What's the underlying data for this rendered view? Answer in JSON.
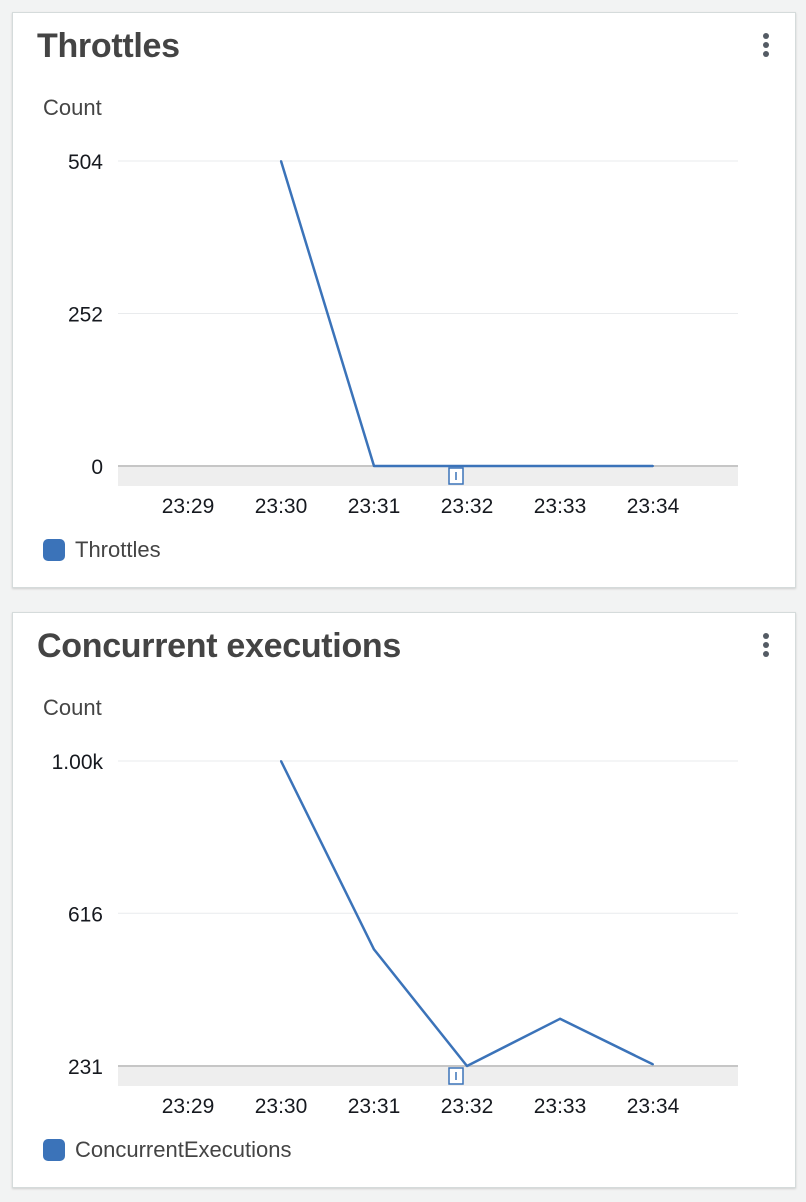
{
  "colors": {
    "series": "#3b73b9",
    "grid": "#e9ebed",
    "baseline": "#c6c6c6",
    "band": "#eeeeee"
  },
  "widgets": [
    {
      "title": "Throttles",
      "menu_icon": "more-vertical-icon",
      "chart_data": {
        "type": "line",
        "title": "Throttles",
        "ylabel": "Count",
        "xlabel": "",
        "x": [
          "23:29",
          "23:30",
          "23:31",
          "23:32",
          "23:33",
          "23:34"
        ],
        "y_ticks": [
          {
            "value": 504,
            "label": "504"
          },
          {
            "value": 252,
            "label": "252"
          },
          {
            "value": 0,
            "label": "0"
          }
        ],
        "ylim": [
          0,
          504
        ],
        "series": [
          {
            "name": "Throttles",
            "points": [
              {
                "x": "23:30",
                "y": 504
              },
              {
                "x": "23:31",
                "y": 0
              },
              {
                "x": "23:32",
                "y": 0
              },
              {
                "x": "23:33",
                "y": 0
              },
              {
                "x": "23:34",
                "y": 0
              }
            ]
          }
        ],
        "grid": true,
        "legend": "bottom-left"
      }
    },
    {
      "title": "Concurrent executions",
      "menu_icon": "more-vertical-icon",
      "chart_data": {
        "type": "line",
        "title": "Concurrent executions",
        "ylabel": "Count",
        "xlabel": "",
        "x": [
          "23:29",
          "23:30",
          "23:31",
          "23:32",
          "23:33",
          "23:34"
        ],
        "y_ticks": [
          {
            "value": 1000,
            "label": "1.00k"
          },
          {
            "value": 616,
            "label": "616"
          },
          {
            "value": 231,
            "label": "231"
          }
        ],
        "ylim": [
          231,
          1000
        ],
        "series": [
          {
            "name": "ConcurrentExecutions",
            "points": [
              {
                "x": "23:30",
                "y": 1000
              },
              {
                "x": "23:31",
                "y": 525
              },
              {
                "x": "23:32",
                "y": 231
              },
              {
                "x": "23:33",
                "y": 350
              },
              {
                "x": "23:34",
                "y": 235
              }
            ]
          }
        ],
        "grid": true,
        "legend": "bottom-left"
      }
    }
  ]
}
